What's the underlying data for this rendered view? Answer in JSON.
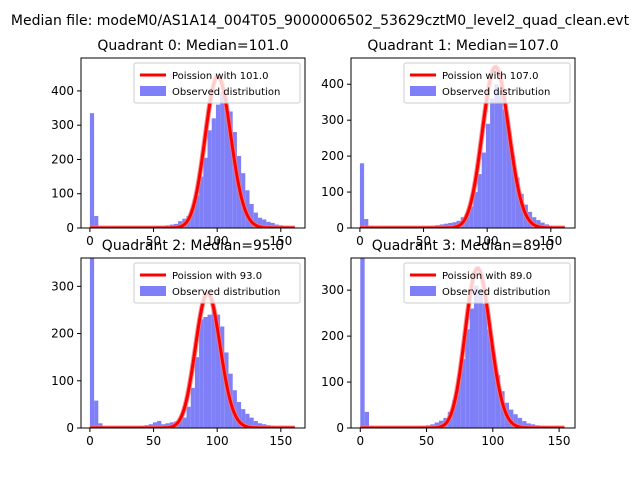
{
  "figure": {
    "suptitle": "Median file: modeM0/AS1A14_004T05_9000006502_53629cztM0_level2_quad_clean.evt"
  },
  "colors": {
    "hist": "#7f7ff7",
    "curve": "#ff0000",
    "curve_overlay": "#f47a7a",
    "axis": "#000000"
  },
  "legend_labels": {
    "observed": "Observed distribution"
  },
  "chart_data": [
    {
      "type": "histogram+line",
      "quadrant": 0,
      "title": "Quadrant 0: Median=101.0",
      "median": 101.0,
      "poisson_mean": 101.0,
      "poisson_label": "Poission with 101.0",
      "xlim": [
        -7,
        169
      ],
      "ylim": [
        0,
        496
      ],
      "xticks": [
        0,
        50,
        100,
        150
      ],
      "yticks": [
        0,
        100,
        200,
        300,
        400
      ],
      "bin_width": 3.3,
      "bins": [
        [
          0,
          335
        ],
        [
          3.3,
          35
        ],
        [
          6.6,
          5
        ],
        [
          9.9,
          2
        ],
        [
          26.4,
          1
        ],
        [
          33,
          2
        ],
        [
          39.6,
          3
        ],
        [
          42.9,
          2
        ],
        [
          46.2,
          4
        ],
        [
          49.5,
          5
        ],
        [
          52.8,
          6
        ],
        [
          56.1,
          6
        ],
        [
          59.4,
          8
        ],
        [
          62.7,
          10
        ],
        [
          66,
          12
        ],
        [
          69.3,
          20
        ],
        [
          72.6,
          27
        ],
        [
          75.9,
          35
        ],
        [
          79.2,
          55
        ],
        [
          82.5,
          95
        ],
        [
          85.8,
          150
        ],
        [
          89.1,
          205
        ],
        [
          92.4,
          285
        ],
        [
          95.7,
          320
        ],
        [
          99,
          360
        ],
        [
          102.3,
          395
        ],
        [
          105.6,
          380
        ],
        [
          108.9,
          340
        ],
        [
          112.2,
          280
        ],
        [
          115.5,
          210
        ],
        [
          118.8,
          160
        ],
        [
          122.1,
          110
        ],
        [
          125.4,
          70
        ],
        [
          128.7,
          45
        ],
        [
          132,
          30
        ],
        [
          135.3,
          25
        ],
        [
          138.6,
          18
        ],
        [
          141.9,
          15
        ],
        [
          145.2,
          10
        ],
        [
          148.5,
          8
        ],
        [
          151.8,
          6
        ],
        [
          155.1,
          5
        ]
      ]
    },
    {
      "type": "histogram+line",
      "quadrant": 1,
      "title": "Quadrant 1: Median=107.0",
      "median": 107.0,
      "poisson_mean": 107.0,
      "poisson_label": "Poission with 107.0",
      "xlim": [
        -7,
        169
      ],
      "ylim": [
        0,
        473
      ],
      "xticks": [
        0,
        50,
        100,
        150
      ],
      "yticks": [
        0,
        100,
        200,
        300,
        400
      ],
      "bin_width": 3.3,
      "bins": [
        [
          0,
          180
        ],
        [
          3.3,
          25
        ],
        [
          6.6,
          3
        ],
        [
          36.3,
          2
        ],
        [
          46.2,
          3
        ],
        [
          52.8,
          5
        ],
        [
          56.1,
          6
        ],
        [
          59.4,
          8
        ],
        [
          62.7,
          10
        ],
        [
          66,
          12
        ],
        [
          69.3,
          14
        ],
        [
          72.6,
          16
        ],
        [
          75.9,
          20
        ],
        [
          79.2,
          30
        ],
        [
          82.5,
          40
        ],
        [
          85.8,
          60
        ],
        [
          89.1,
          100
        ],
        [
          92.4,
          150
        ],
        [
          95.7,
          210
        ],
        [
          99,
          290
        ],
        [
          102.3,
          360
        ],
        [
          105.6,
          400
        ],
        [
          108.9,
          380
        ],
        [
          112.2,
          330
        ],
        [
          115.5,
          270
        ],
        [
          118.8,
          200
        ],
        [
          122.1,
          140
        ],
        [
          125.4,
          95
        ],
        [
          128.7,
          65
        ],
        [
          132,
          45
        ],
        [
          135.3,
          30
        ],
        [
          138.6,
          22
        ],
        [
          141.9,
          15
        ],
        [
          145.2,
          10
        ],
        [
          148.5,
          6
        ],
        [
          151.8,
          4
        ]
      ]
    },
    {
      "type": "histogram+line",
      "quadrant": 2,
      "title": "Quadrant 2: Median=95.0",
      "median": 95.0,
      "poisson_mean": 93.0,
      "poisson_label": "Poission with 93.0",
      "xlim": [
        -7,
        169
      ],
      "ylim": [
        0,
        360
      ],
      "xticks": [
        0,
        50,
        100,
        150
      ],
      "yticks": [
        0,
        100,
        200,
        300
      ],
      "bin_width": 3.3,
      "bins": [
        [
          0,
          360
        ],
        [
          3.3,
          58
        ],
        [
          6.6,
          10
        ],
        [
          9.9,
          3
        ],
        [
          29.7,
          2
        ],
        [
          33,
          3
        ],
        [
          39.6,
          4
        ],
        [
          42.9,
          6
        ],
        [
          46.2,
          8
        ],
        [
          49.5,
          12
        ],
        [
          52.8,
          15
        ],
        [
          56.1,
          8
        ],
        [
          59.4,
          10
        ],
        [
          62.7,
          12
        ],
        [
          66,
          14
        ],
        [
          69.3,
          16
        ],
        [
          72.6,
          22
        ],
        [
          75.9,
          45
        ],
        [
          79.2,
          85
        ],
        [
          82.5,
          150
        ],
        [
          85.8,
          230
        ],
        [
          89.1,
          235
        ],
        [
          92.4,
          240
        ],
        [
          95.7,
          255
        ],
        [
          99,
          240
        ],
        [
          102.3,
          215
        ],
        [
          105.6,
          160
        ],
        [
          108.9,
          115
        ],
        [
          112.2,
          80
        ],
        [
          115.5,
          55
        ],
        [
          118.8,
          40
        ],
        [
          122.1,
          30
        ],
        [
          125.4,
          22
        ],
        [
          128.7,
          15
        ],
        [
          132,
          10
        ],
        [
          135.3,
          8
        ],
        [
          138.6,
          6
        ],
        [
          141.9,
          5
        ]
      ]
    },
    {
      "type": "histogram+line",
      "quadrant": 3,
      "title": "Quadrant 3: Median=89.0",
      "median": 89.0,
      "poisson_mean": 89.0,
      "poisson_label": "Poission with 89.0",
      "xlim": [
        -7,
        162
      ],
      "ylim": [
        0,
        370
      ],
      "xticks": [
        0,
        50,
        100,
        150
      ],
      "yticks": [
        0,
        100,
        200,
        300
      ],
      "bin_width": 3.3,
      "bins": [
        [
          0,
          370
        ],
        [
          3.3,
          35
        ],
        [
          6.6,
          4
        ],
        [
          39.6,
          3
        ],
        [
          46.2,
          4
        ],
        [
          49.5,
          6
        ],
        [
          52.8,
          8
        ],
        [
          56.1,
          12
        ],
        [
          59.4,
          16
        ],
        [
          62.7,
          22
        ],
        [
          66,
          35
        ],
        [
          69.3,
          60
        ],
        [
          72.6,
          100
        ],
        [
          75.9,
          150
        ],
        [
          79.2,
          215
        ],
        [
          82.5,
          260
        ],
        [
          85.8,
          310
        ],
        [
          89.1,
          300
        ],
        [
          92.4,
          270
        ],
        [
          95.7,
          215
        ],
        [
          99,
          160
        ],
        [
          102.3,
          115
        ],
        [
          105.6,
          80
        ],
        [
          108.9,
          55
        ],
        [
          112.2,
          40
        ],
        [
          115.5,
          30
        ],
        [
          118.8,
          22
        ],
        [
          122.1,
          15
        ],
        [
          125.4,
          10
        ],
        [
          128.7,
          8
        ],
        [
          132,
          6
        ],
        [
          135.3,
          5
        ],
        [
          138.6,
          4
        ]
      ]
    }
  ]
}
